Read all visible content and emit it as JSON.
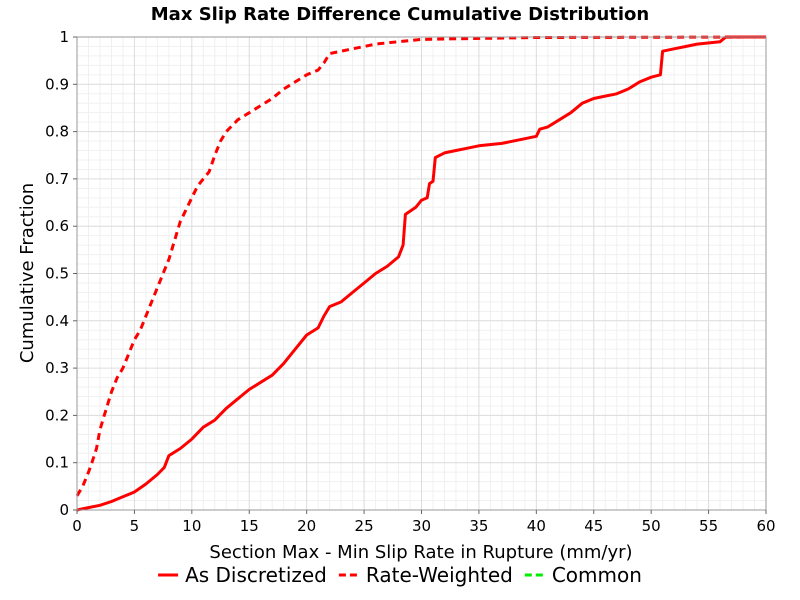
{
  "chart_data": {
    "type": "line",
    "title": "Max Slip Rate Difference Cumulative Distribution",
    "xlabel": "Section Max - Min Slip Rate in Rupture (mm/yr)",
    "ylabel": "Cumulative Fraction",
    "xlim": [
      0,
      60
    ],
    "ylim": [
      0,
      1
    ],
    "xticks": [
      "0",
      "5",
      "10",
      "15",
      "20",
      "25",
      "30",
      "35",
      "40",
      "45",
      "50",
      "55",
      "60"
    ],
    "yticks": [
      "0",
      "0.1",
      "0.2",
      "0.3",
      "0.4",
      "0.5",
      "0.6",
      "0.7",
      "0.8",
      "0.9",
      "1"
    ],
    "grid": true,
    "legend_position": "bottom",
    "series": [
      {
        "name": "As Discretized",
        "color": "#ff0000",
        "style": "solid",
        "points": [
          [
            0,
            0.0
          ],
          [
            1,
            0.005
          ],
          [
            2,
            0.01
          ],
          [
            3,
            0.018
          ],
          [
            4,
            0.028
          ],
          [
            5,
            0.038
          ],
          [
            6,
            0.055
          ],
          [
            7,
            0.075
          ],
          [
            7.6,
            0.09
          ],
          [
            8,
            0.115
          ],
          [
            9,
            0.13
          ],
          [
            10,
            0.15
          ],
          [
            11,
            0.175
          ],
          [
            12,
            0.19
          ],
          [
            13,
            0.215
          ],
          [
            14,
            0.235
          ],
          [
            15,
            0.255
          ],
          [
            16,
            0.27
          ],
          [
            17,
            0.285
          ],
          [
            18,
            0.31
          ],
          [
            19,
            0.34
          ],
          [
            20,
            0.37
          ],
          [
            21,
            0.385
          ],
          [
            21.5,
            0.41
          ],
          [
            22,
            0.43
          ],
          [
            23,
            0.44
          ],
          [
            24,
            0.46
          ],
          [
            25,
            0.48
          ],
          [
            26,
            0.5
          ],
          [
            27,
            0.515
          ],
          [
            28,
            0.535
          ],
          [
            28.4,
            0.56
          ],
          [
            28.6,
            0.625
          ],
          [
            29.5,
            0.64
          ],
          [
            30,
            0.655
          ],
          [
            30.5,
            0.66
          ],
          [
            30.7,
            0.69
          ],
          [
            31,
            0.695
          ],
          [
            31.2,
            0.745
          ],
          [
            32,
            0.755
          ],
          [
            33,
            0.76
          ],
          [
            34,
            0.765
          ],
          [
            35,
            0.77
          ],
          [
            37,
            0.775
          ],
          [
            39,
            0.785
          ],
          [
            40,
            0.79
          ],
          [
            40.3,
            0.805
          ],
          [
            41,
            0.81
          ],
          [
            42,
            0.825
          ],
          [
            43,
            0.84
          ],
          [
            44,
            0.86
          ],
          [
            45,
            0.87
          ],
          [
            46,
            0.875
          ],
          [
            47,
            0.88
          ],
          [
            48,
            0.89
          ],
          [
            49,
            0.905
          ],
          [
            50,
            0.915
          ],
          [
            50.8,
            0.92
          ],
          [
            51,
            0.97
          ],
          [
            52,
            0.975
          ],
          [
            53,
            0.98
          ],
          [
            54,
            0.985
          ],
          [
            56,
            0.99
          ],
          [
            56.5,
            1.0
          ],
          [
            60,
            1.0
          ]
        ]
      },
      {
        "name": "Rate-Weighted",
        "color": "#ff0000",
        "style": "dashed",
        "points": [
          [
            0,
            0.03
          ],
          [
            0.5,
            0.05
          ],
          [
            1,
            0.08
          ],
          [
            1.3,
            0.1
          ],
          [
            1.7,
            0.13
          ],
          [
            2,
            0.17
          ],
          [
            2.5,
            0.21
          ],
          [
            3,
            0.25
          ],
          [
            3.5,
            0.28
          ],
          [
            4,
            0.3
          ],
          [
            4.5,
            0.33
          ],
          [
            5,
            0.36
          ],
          [
            5.5,
            0.38
          ],
          [
            6,
            0.41
          ],
          [
            6.5,
            0.44
          ],
          [
            7,
            0.47
          ],
          [
            7.5,
            0.5
          ],
          [
            8,
            0.53
          ],
          [
            8.5,
            0.57
          ],
          [
            9,
            0.61
          ],
          [
            9.5,
            0.635
          ],
          [
            10,
            0.66
          ],
          [
            10.5,
            0.685
          ],
          [
            11,
            0.7
          ],
          [
            11.5,
            0.715
          ],
          [
            12,
            0.75
          ],
          [
            12.5,
            0.78
          ],
          [
            13,
            0.8
          ],
          [
            14,
            0.825
          ],
          [
            15,
            0.84
          ],
          [
            16,
            0.855
          ],
          [
            17,
            0.87
          ],
          [
            18,
            0.89
          ],
          [
            19,
            0.905
          ],
          [
            20,
            0.92
          ],
          [
            21,
            0.93
          ],
          [
            21.5,
            0.945
          ],
          [
            22,
            0.965
          ],
          [
            23,
            0.97
          ],
          [
            24,
            0.975
          ],
          [
            25,
            0.98
          ],
          [
            26,
            0.985
          ],
          [
            28,
            0.99
          ],
          [
            30,
            0.995
          ],
          [
            35,
            0.997
          ],
          [
            40,
            0.999
          ],
          [
            60,
            1.0
          ]
        ]
      },
      {
        "name": "Common",
        "color": "#00ee00",
        "style": "dashed",
        "points": []
      }
    ]
  }
}
